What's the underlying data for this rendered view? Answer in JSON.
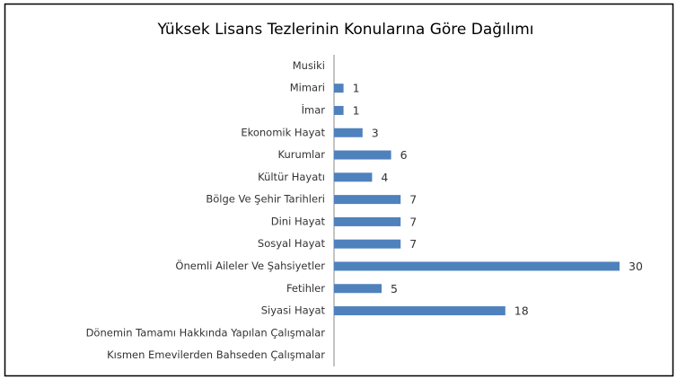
{
  "chart_data": {
    "type": "bar",
    "orientation": "horizontal",
    "title": "Yüksek Lisans Tezlerinin Konularına Göre Dağılımı",
    "categories": [
      "Musiki",
      "Mimari",
      "İmar",
      "Ekonomik Hayat",
      "Kurumlar",
      "Kültür Hayatı",
      "Bölge Ve Şehir Tarihleri",
      "Dini Hayat",
      "Sosyal Hayat",
      "Önemli Aileler Ve Şahsiyetler",
      "Fetihler",
      "Siyasi Hayat",
      "Dönemin Tamamı Hakkında Yapılan Çalışmalar",
      "Kısmen Emevilerden Bahseden Çalışmalar"
    ],
    "values": [
      null,
      1,
      1,
      3,
      6,
      4,
      7,
      7,
      7,
      30,
      5,
      18,
      null,
      null
    ],
    "color": "#4f81bd",
    "xlim": [
      0,
      30
    ]
  }
}
